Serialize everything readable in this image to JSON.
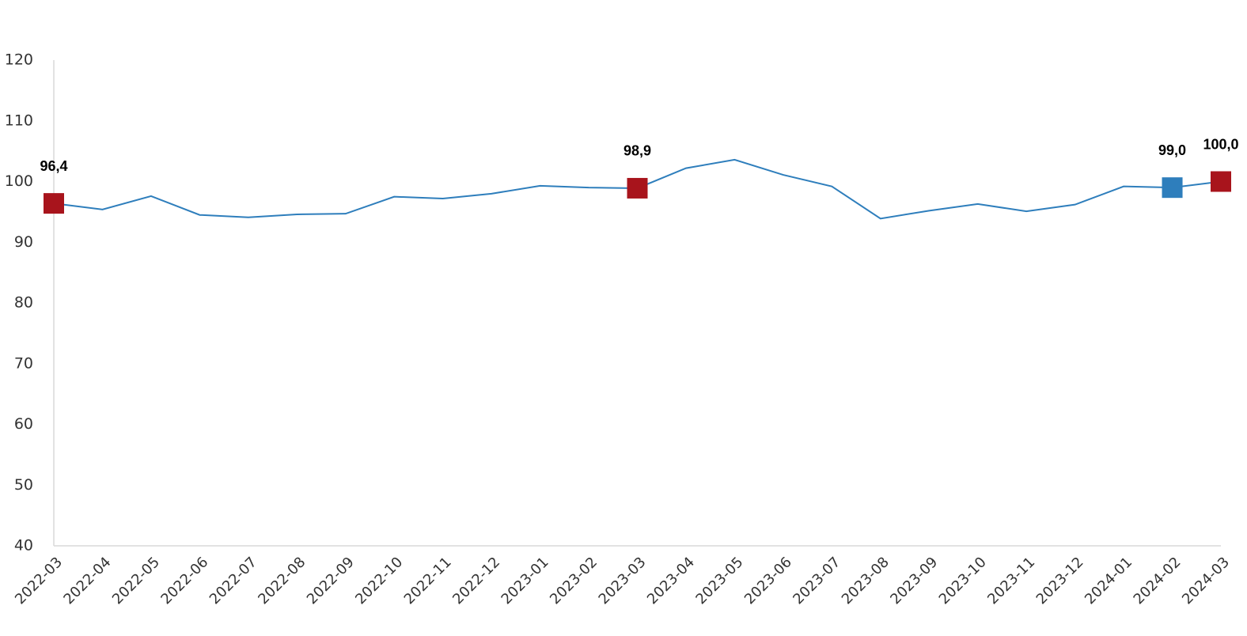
{
  "chart_data": {
    "type": "line",
    "categories": [
      "2022-03",
      "2022-04",
      "2022-05",
      "2022-06",
      "2022-07",
      "2022-08",
      "2022-09",
      "2022-10",
      "2022-11",
      "2022-12",
      "2023-01",
      "2023-02",
      "2023-03",
      "2023-04",
      "2023-05",
      "2023-06",
      "2023-07",
      "2023-08",
      "2023-09",
      "2023-10",
      "2023-11",
      "2023-12",
      "2024-01",
      "2024-02",
      "2024-03"
    ],
    "series": [
      {
        "color": "#2e7ebc",
        "values": [
          96.4,
          95.4,
          97.6,
          94.5,
          94.1,
          94.6,
          94.7,
          97.5,
          97.2,
          98.0,
          99.3,
          99.0,
          98.9,
          102.2,
          103.6,
          101.1,
          99.2,
          93.9,
          95.2,
          96.3,
          95.1,
          96.2,
          99.2,
          99.0,
          100.0
        ],
        "value_labels": [
          "96,4",
          null,
          null,
          null,
          null,
          null,
          null,
          null,
          null,
          null,
          null,
          null,
          "98,9",
          null,
          null,
          null,
          null,
          null,
          null,
          null,
          null,
          null,
          null,
          "99,0",
          "100,0"
        ],
        "marker_colors": [
          "#a8141c",
          null,
          null,
          null,
          null,
          null,
          null,
          null,
          null,
          null,
          null,
          null,
          "#a8141c",
          null,
          null,
          null,
          null,
          null,
          null,
          null,
          null,
          null,
          null,
          "#2e7ebc",
          "#a8141c"
        ]
      }
    ],
    "ylim": [
      40,
      120
    ],
    "yticks": [
      40,
      50,
      60,
      70,
      80,
      90,
      100,
      110,
      120
    ],
    "grid": false
  }
}
